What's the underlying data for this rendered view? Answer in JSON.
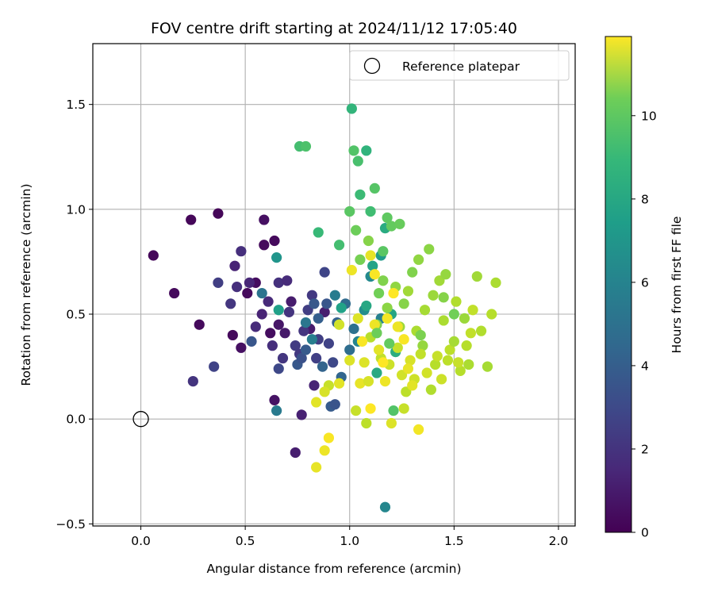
{
  "chart_data": {
    "type": "scatter",
    "title": "FOV centre drift starting at 2024/11/12 17:05:40",
    "xlabel": "Angular distance from reference (arcmin)",
    "ylabel": "Rotation from reference (arcmin)",
    "xlim": [
      -0.23,
      2.08
    ],
    "ylim": [
      -0.51,
      1.79
    ],
    "xticks": [
      0.0,
      0.5,
      1.0,
      1.5,
      2.0
    ],
    "xtick_labels": [
      "0.0",
      "0.5",
      "1.0",
      "1.5",
      "2.0"
    ],
    "yticks": [
      -0.5,
      0.0,
      0.5,
      1.0,
      1.5
    ],
    "ytick_labels": [
      "−0.5",
      "0.0",
      "0.5",
      "1.0",
      "1.5"
    ],
    "grid": true,
    "legend": {
      "placement": "top-right",
      "entries": [
        "Reference platepar"
      ]
    },
    "reference_point": {
      "x": 0.0,
      "y": 0.0,
      "label": "Reference platepar"
    },
    "colorbar": {
      "label": "Hours from first FF file",
      "range": [
        0,
        11.9
      ],
      "ticks": [
        0,
        2,
        4,
        6,
        8,
        10
      ],
      "colormap": "viridis"
    },
    "series": [
      {
        "columns": [
          "x",
          "y",
          "hours"
        ],
        "points": [
          [
            0.06,
            0.78,
            0.2
          ],
          [
            0.16,
            0.6,
            0.3
          ],
          [
            0.24,
            0.95,
            0.2
          ],
          [
            0.28,
            0.45,
            0.3
          ],
          [
            0.37,
            0.98,
            0.2
          ],
          [
            0.44,
            0.4,
            0.3
          ],
          [
            0.48,
            0.34,
            0.5
          ],
          [
            0.51,
            0.6,
            0.3
          ],
          [
            0.55,
            0.65,
            0.4
          ],
          [
            0.59,
            0.95,
            0.5
          ],
          [
            0.59,
            0.83,
            0.3
          ],
          [
            0.64,
            0.85,
            0.3
          ],
          [
            0.62,
            0.41,
            0.4
          ],
          [
            0.64,
            0.09,
            0.6
          ],
          [
            0.66,
            0.45,
            0.7
          ],
          [
            0.69,
            0.41,
            0.8
          ],
          [
            0.72,
            0.56,
            0.9
          ],
          [
            0.74,
            -0.16,
            1.0
          ],
          [
            0.77,
            0.02,
            1.1
          ],
          [
            0.81,
            0.43,
            0.9
          ],
          [
            0.83,
            0.16,
            1.2
          ],
          [
            0.88,
            0.51,
            1.0
          ],
          [
            0.45,
            0.73,
            1.2
          ],
          [
            0.48,
            0.8,
            1.6
          ],
          [
            0.52,
            0.65,
            1.3
          ],
          [
            0.55,
            0.44,
            1.5
          ],
          [
            0.58,
            0.5,
            1.2
          ],
          [
            0.61,
            0.56,
            1.4
          ],
          [
            0.63,
            0.35,
            1.6
          ],
          [
            0.66,
            0.65,
            1.7
          ],
          [
            0.68,
            0.29,
            1.9
          ],
          [
            0.7,
            0.66,
            1.5
          ],
          [
            0.71,
            0.51,
            1.8
          ],
          [
            0.74,
            0.35,
            2.1
          ],
          [
            0.76,
            0.31,
            2.0
          ],
          [
            0.78,
            0.42,
            1.9
          ],
          [
            0.8,
            0.52,
            2.2
          ],
          [
            0.82,
            0.59,
            2.0
          ],
          [
            0.84,
            0.29,
            2.3
          ],
          [
            0.85,
            0.38,
            2.2
          ],
          [
            0.88,
            0.7,
            2.5
          ],
          [
            0.9,
            0.36,
            2.4
          ],
          [
            0.92,
            0.27,
            2.6
          ],
          [
            0.25,
            0.18,
            1.8
          ],
          [
            0.35,
            0.25,
            2.4
          ],
          [
            0.37,
            0.65,
            2.2
          ],
          [
            0.43,
            0.55,
            1.9
          ],
          [
            0.46,
            0.63,
            1.6
          ],
          [
            0.53,
            0.37,
            3.2
          ],
          [
            0.66,
            0.24,
            2.6
          ],
          [
            0.75,
            0.26,
            3.3
          ],
          [
            0.77,
            0.29,
            3.0
          ],
          [
            0.79,
            0.33,
            3.4
          ],
          [
            0.83,
            0.55,
            3.3
          ],
          [
            0.85,
            0.48,
            3.6
          ],
          [
            0.87,
            0.25,
            3.8
          ],
          [
            0.89,
            0.55,
            3.2
          ],
          [
            0.91,
            0.06,
            3.4
          ],
          [
            0.93,
            0.07,
            3.1
          ],
          [
            0.94,
            0.46,
            3.7
          ],
          [
            0.96,
            0.2,
            3.9
          ],
          [
            0.98,
            0.55,
            4.1
          ],
          [
            1.0,
            0.33,
            4.2
          ],
          [
            1.02,
            0.43,
            4.4
          ],
          [
            0.58,
            0.6,
            4.6
          ],
          [
            0.65,
            0.04,
            4.9
          ],
          [
            0.79,
            0.46,
            4.7
          ],
          [
            0.82,
            0.38,
            5.1
          ],
          [
            0.93,
            0.59,
            5.0
          ],
          [
            1.04,
            0.37,
            5.4
          ],
          [
            1.07,
            0.52,
            5.8
          ],
          [
            1.1,
            0.68,
            5.6
          ],
          [
            1.15,
            0.48,
            5.2
          ],
          [
            1.17,
            -0.42,
            5.5
          ],
          [
            0.65,
            0.77,
            6.2
          ],
          [
            0.66,
            0.52,
            6.7
          ],
          [
            0.96,
            0.53,
            6.8
          ],
          [
            1.08,
            0.54,
            7.1
          ],
          [
            1.11,
            0.73,
            6.9
          ],
          [
            1.13,
            0.22,
            7.2
          ],
          [
            1.15,
            0.78,
            6.5
          ],
          [
            1.17,
            0.91,
            7.3
          ],
          [
            1.2,
            0.5,
            7.0
          ],
          [
            1.22,
            0.32,
            7.4
          ],
          [
            0.76,
            1.3,
            8.3
          ],
          [
            0.79,
            1.3,
            8.5
          ],
          [
            1.01,
            1.48,
            7.8
          ],
          [
            1.02,
            1.28,
            8.6
          ],
          [
            1.04,
            1.23,
            8.4
          ],
          [
            1.05,
            1.07,
            8.1
          ],
          [
            1.08,
            1.28,
            7.7
          ],
          [
            1.1,
            0.99,
            8.2
          ],
          [
            1.12,
            1.1,
            8.7
          ],
          [
            1.16,
            0.8,
            8.8
          ],
          [
            1.18,
            0.96,
            8.9
          ],
          [
            1.2,
            0.92,
            9.0
          ],
          [
            1.21,
            0.04,
            8.6
          ],
          [
            1.24,
            0.93,
            9.1
          ],
          [
            0.85,
            0.89,
            8.0
          ],
          [
            0.95,
            0.83,
            8.3
          ],
          [
            1.0,
            0.99,
            8.8
          ],
          [
            1.03,
            0.9,
            9.2
          ],
          [
            1.05,
            0.76,
            9.4
          ],
          [
            1.09,
            0.85,
            9.7
          ],
          [
            1.13,
            0.45,
            9.5
          ],
          [
            1.14,
            0.6,
            9.3
          ],
          [
            1.16,
            0.66,
            9.6
          ],
          [
            1.18,
            0.53,
            9.8
          ],
          [
            1.22,
            0.63,
            9.9
          ],
          [
            1.24,
            0.44,
            10.1
          ],
          [
            1.26,
            0.55,
            9.7
          ],
          [
            1.28,
            0.61,
            10.2
          ],
          [
            1.3,
            0.7,
            9.6
          ],
          [
            1.32,
            0.42,
            10.4
          ],
          [
            1.33,
            0.76,
            9.9
          ],
          [
            1.35,
            0.35,
            10.0
          ],
          [
            1.36,
            0.52,
            10.3
          ],
          [
            1.38,
            0.81,
            9.8
          ],
          [
            1.39,
            0.14,
            10.5
          ],
          [
            1.4,
            0.59,
            10.1
          ],
          [
            1.41,
            0.26,
            10.6
          ],
          [
            1.43,
            0.66,
            10.2
          ],
          [
            1.45,
            0.47,
            10.4
          ],
          [
            1.46,
            0.69,
            10.0
          ],
          [
            1.48,
            0.33,
            10.7
          ],
          [
            1.5,
            0.37,
            10.3
          ],
          [
            1.51,
            0.56,
            10.5
          ],
          [
            1.53,
            0.23,
            10.6
          ],
          [
            1.55,
            0.48,
            10.1
          ],
          [
            1.57,
            0.26,
            10.4
          ],
          [
            1.59,
            0.52,
            10.8
          ],
          [
            1.61,
            0.68,
            10.2
          ],
          [
            1.63,
            0.42,
            10.5
          ],
          [
            1.66,
            0.25,
            10.3
          ],
          [
            1.68,
            0.5,
            10.6
          ],
          [
            1.7,
            0.65,
            10.4
          ],
          [
            1.1,
            0.39,
            10.6
          ],
          [
            1.15,
            0.29,
            10.8
          ],
          [
            1.19,
            0.26,
            11.0
          ],
          [
            1.23,
            0.34,
            10.9
          ],
          [
            1.25,
            0.21,
            11.1
          ],
          [
            1.27,
            0.13,
            10.7
          ],
          [
            1.29,
            0.28,
            11.2
          ],
          [
            1.31,
            0.19,
            11.0
          ],
          [
            1.34,
            0.31,
            10.8
          ],
          [
            1.37,
            0.22,
            11.1
          ],
          [
            1.42,
            0.3,
            10.9
          ],
          [
            1.44,
            0.19,
            11.0
          ],
          [
            1.47,
            0.28,
            10.7
          ],
          [
            1.52,
            0.27,
            10.9
          ],
          [
            1.56,
            0.35,
            10.6
          ],
          [
            1.58,
            0.41,
            10.8
          ],
          [
            0.9,
            0.16,
            10.9
          ],
          [
            0.95,
            0.45,
            11.1
          ],
          [
            1.0,
            0.28,
            11.3
          ],
          [
            1.03,
            0.04,
            10.9
          ],
          [
            1.05,
            0.17,
            11.5
          ],
          [
            1.07,
            0.27,
            11.3
          ],
          [
            1.09,
            0.18,
            11.2
          ],
          [
            1.12,
            0.45,
            11.6
          ],
          [
            1.14,
            0.33,
            11.4
          ],
          [
            1.17,
            0.18,
            11.6
          ],
          [
            1.2,
            -0.02,
            11.3
          ],
          [
            1.26,
            0.05,
            10.9
          ],
          [
            1.3,
            0.16,
            11.4
          ],
          [
            1.33,
            -0.05,
            11.7
          ],
          [
            0.84,
            -0.23,
            11.5
          ],
          [
            0.88,
            -0.15,
            11.6
          ],
          [
            0.9,
            -0.09,
            11.8
          ],
          [
            0.88,
            0.13,
            11.2
          ],
          [
            0.95,
            0.17,
            11.4
          ],
          [
            1.01,
            0.71,
            11.6
          ],
          [
            1.04,
            0.48,
            11.3
          ],
          [
            1.06,
            0.37,
            11.8
          ],
          [
            1.1,
            0.78,
            11.5
          ],
          [
            1.12,
            0.69,
            11.8
          ],
          [
            1.16,
            0.27,
            11.9
          ],
          [
            1.18,
            0.48,
            11.7
          ],
          [
            1.21,
            0.6,
            11.9
          ],
          [
            1.23,
            0.44,
            11.6
          ],
          [
            1.26,
            0.38,
            11.8
          ],
          [
            1.28,
            0.24,
            11.5
          ],
          [
            1.08,
            -0.02,
            10.7
          ],
          [
            1.1,
            0.05,
            11.9
          ],
          [
            0.84,
            0.08,
            11.4
          ],
          [
            1.13,
            0.41,
            9.2
          ],
          [
            1.19,
            0.36,
            9.0
          ],
          [
            1.34,
            0.4,
            9.5
          ],
          [
            1.45,
            0.58,
            9.7
          ],
          [
            1.5,
            0.5,
            9.3
          ]
        ]
      }
    ]
  }
}
